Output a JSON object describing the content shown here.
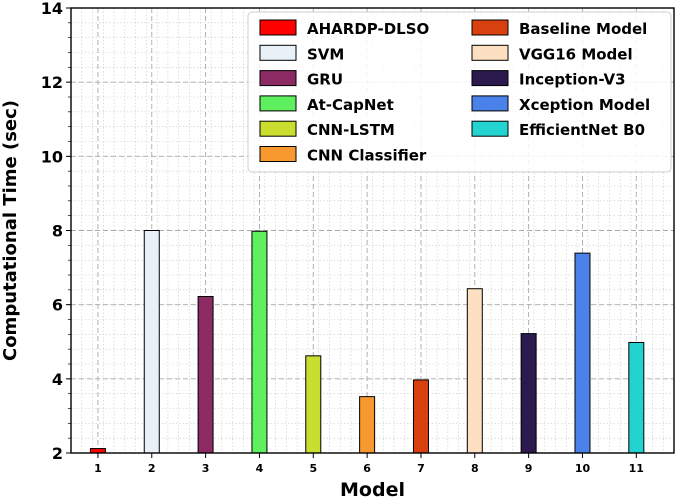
{
  "chart_data": {
    "type": "bar",
    "title": "",
    "xlabel": "Model",
    "ylabel": "Computational Time (sec)",
    "ylim": [
      2,
      14
    ],
    "yticks": [
      2,
      4,
      6,
      8,
      10,
      12,
      14
    ],
    "grid": true,
    "legend_position": "top-right",
    "categories": [
      "1",
      "2",
      "3",
      "4",
      "5",
      "6",
      "7",
      "8",
      "9",
      "10",
      "11"
    ],
    "series": [
      {
        "name": "AHARDP-DLSO",
        "category": "1",
        "value": 2.12,
        "color": "#ff0000"
      },
      {
        "name": "SVM",
        "category": "2",
        "value": 8.0,
        "color": "#e9f1f8"
      },
      {
        "name": "GRU",
        "category": "3",
        "value": 6.22,
        "color": "#8b2a63"
      },
      {
        "name": "At-CapNet",
        "category": "4",
        "value": 7.98,
        "color": "#5ef05e"
      },
      {
        "name": "CNN-LSTM",
        "category": "5",
        "value": 4.62,
        "color": "#c9de2e"
      },
      {
        "name": "CNN Classifier",
        "category": "6",
        "value": 3.52,
        "color": "#f7992e"
      },
      {
        "name": "Baseline Model",
        "category": "7",
        "value": 3.97,
        "color": "#d9400f"
      },
      {
        "name": "VGG16 Model",
        "category": "8",
        "value": 6.43,
        "color": "#fde0c1"
      },
      {
        "name": "Inception-V3",
        "category": "9",
        "value": 5.22,
        "color": "#2c1a4f"
      },
      {
        "name": "Xception Model",
        "category": "10",
        "value": 7.39,
        "color": "#4b82ea"
      },
      {
        "name": "EfficientNet B0",
        "category": "11",
        "value": 4.98,
        "color": "#22d3cf"
      }
    ]
  }
}
